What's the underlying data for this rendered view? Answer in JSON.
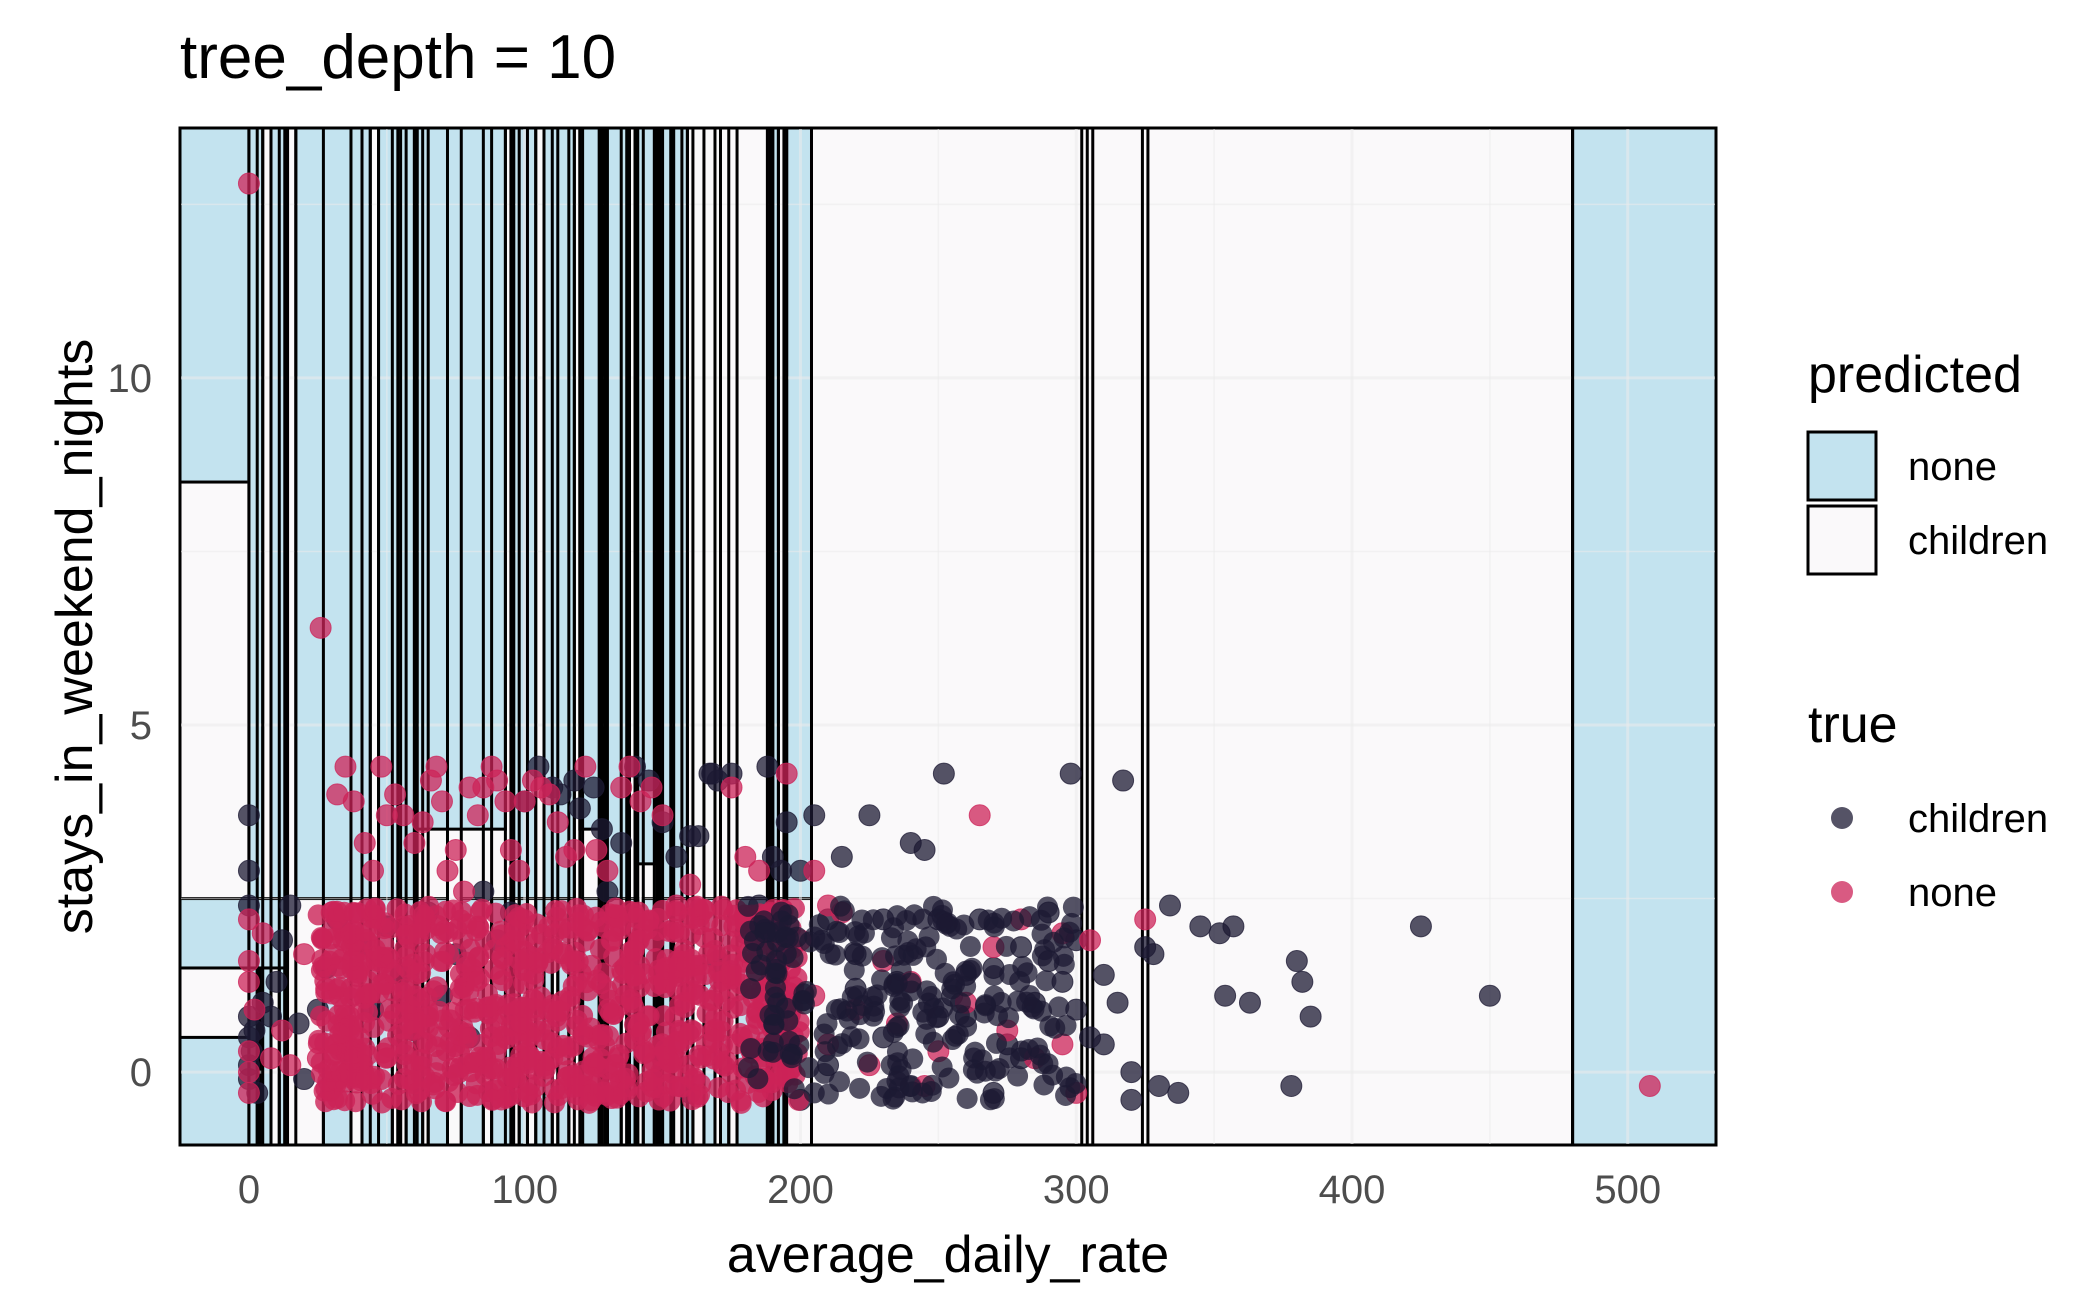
{
  "chart_data": {
    "type": "scatter",
    "title": "tree_depth = 10",
    "xlabel": "average_daily_rate",
    "ylabel": "stays_in_weekend_nights",
    "xlim": [
      -25,
      532
    ],
    "ylim": [
      -1.05,
      13.6
    ],
    "x_ticks": [
      0,
      100,
      200,
      300,
      400,
      500
    ],
    "y_ticks": [
      0,
      5,
      10
    ],
    "grid": true,
    "legends": [
      {
        "title": "predicted",
        "entries": [
          {
            "label": "none",
            "fill": "#c3e3ef"
          },
          {
            "label": "children",
            "fill": "#faf9fa"
          }
        ]
      },
      {
        "title": "true",
        "entries": [
          {
            "label": "children",
            "color": "#1c1a33"
          },
          {
            "label": "none",
            "color": "#cc2358"
          }
        ]
      }
    ],
    "legend_position": "right",
    "colors": {
      "region_none": "#c3e3ef",
      "region_children": "#faf9fa",
      "point_children": "#1c1a33",
      "point_none": "#cc2358"
    },
    "regions": [
      {
        "x0": -25,
        "x1": 480,
        "y0": -1.05,
        "y1": 13.6,
        "predicted": "children"
      },
      {
        "x0": 480,
        "x1": 532,
        "y0": -1.05,
        "y1": 13.6,
        "predicted": "none"
      },
      {
        "x0": -25,
        "x1": 0,
        "y0": 8.5,
        "y1": 13.6,
        "predicted": "none"
      },
      {
        "x0": -25,
        "x1": 0,
        "y0": -1.05,
        "y1": 0.5,
        "predicted": "none"
      },
      {
        "x0": -25,
        "x1": 0,
        "y0": 1.5,
        "y1": 2.5,
        "predicted": "none"
      },
      {
        "x0": 0,
        "x1": 5,
        "y0": 2.5,
        "y1": 13.6,
        "predicted": "none"
      },
      {
        "x0": 8,
        "x1": 14,
        "y0": 2.5,
        "y1": 13.6,
        "predicted": "none"
      },
      {
        "x0": 17,
        "x1": 44,
        "y0": 2.5,
        "y1": 13.6,
        "predicted": "none"
      },
      {
        "x0": 47,
        "x1": 60,
        "y0": 2.5,
        "y1": 13.6,
        "predicted": "none"
      },
      {
        "x0": 61,
        "x1": 93,
        "y0": 3.5,
        "y1": 13.6,
        "predicted": "none"
      },
      {
        "x0": 96,
        "x1": 104,
        "y0": 2.5,
        "y1": 13.6,
        "predicted": "none"
      },
      {
        "x0": 107,
        "x1": 118,
        "y0": 2.5,
        "y1": 13.6,
        "predicted": "none"
      },
      {
        "x0": 120,
        "x1": 128,
        "y0": 3.5,
        "y1": 13.6,
        "predicted": "none"
      },
      {
        "x0": 129,
        "x1": 138,
        "y0": 2.5,
        "y1": 13.6,
        "predicted": "none"
      },
      {
        "x0": 140,
        "x1": 148,
        "y0": 3.0,
        "y1": 13.6,
        "predicted": "none"
      },
      {
        "x0": 149,
        "x1": 153,
        "y0": 2.5,
        "y1": 13.6,
        "predicted": "none"
      },
      {
        "x0": 154,
        "x1": 159,
        "y0": 2.5,
        "y1": 13.6,
        "predicted": "none"
      },
      {
        "x0": 189,
        "x1": 192,
        "y0": 2.5,
        "y1": 13.6,
        "predicted": "none"
      },
      {
        "x0": 195,
        "x1": 204,
        "y0": 2.5,
        "y1": 13.6,
        "predicted": "none"
      },
      {
        "x0": 0,
        "x1": 480,
        "y0": 2.5,
        "y1": 2.5,
        "predicted": "children"
      },
      {
        "x0": 0,
        "x1": 14,
        "y0": 1.5,
        "y1": 2.5,
        "predicted": "none"
      },
      {
        "x0": 0,
        "x1": 3,
        "y0": -1.05,
        "y1": 1.5,
        "predicted": "none"
      },
      {
        "x0": 4,
        "x1": 8,
        "y0": -1.05,
        "y1": 1.5,
        "predicted": "none"
      },
      {
        "x0": 11,
        "x1": 13,
        "y0": -1.05,
        "y1": 1.5,
        "predicted": "none"
      },
      {
        "x0": 27,
        "x1": 37,
        "y0": -1.05,
        "y1": 2.5,
        "predicted": "none"
      },
      {
        "x0": 41,
        "x1": 52,
        "y0": -1.05,
        "y1": 2.5,
        "predicted": "none"
      },
      {
        "x0": 54,
        "x1": 55,
        "y0": -1.05,
        "y1": 2.5,
        "predicted": "none"
      },
      {
        "x0": 57,
        "x1": 63,
        "y0": -1.05,
        "y1": 2.5,
        "predicted": "none"
      },
      {
        "x0": 65,
        "x1": 72,
        "y0": -1.05,
        "y1": 2.5,
        "predicted": "none"
      },
      {
        "x0": 77,
        "x1": 85,
        "y0": -1.05,
        "y1": 2.5,
        "predicted": "none"
      },
      {
        "x0": 88,
        "x1": 95,
        "y0": -1.05,
        "y1": 2.5,
        "predicted": "none"
      },
      {
        "x0": 98,
        "x1": 101,
        "y0": -1.05,
        "y1": 2.5,
        "predicted": "none"
      },
      {
        "x0": 104,
        "x1": 110,
        "y0": -1.05,
        "y1": 2.5,
        "predicted": "none"
      },
      {
        "x0": 112,
        "x1": 116,
        "y0": -1.05,
        "y1": 2.5,
        "predicted": "none"
      },
      {
        "x0": 121,
        "x1": 127,
        "y0": -1.05,
        "y1": 2.5,
        "predicted": "none"
      },
      {
        "x0": 130,
        "x1": 135,
        "y0": -1.05,
        "y1": 2.5,
        "predicted": "none"
      },
      {
        "x0": 137,
        "x1": 141,
        "y0": -1.05,
        "y1": 2.5,
        "predicted": "none"
      },
      {
        "x0": 143,
        "x1": 147,
        "y0": -1.05,
        "y1": 2.5,
        "predicted": "none"
      },
      {
        "x0": 150,
        "x1": 154,
        "y0": -1.05,
        "y1": 2.5,
        "predicted": "none"
      },
      {
        "x0": 157,
        "x1": 161,
        "y0": -1.05,
        "y1": 2.5,
        "predicted": "none"
      },
      {
        "x0": 165,
        "x1": 169,
        "y0": -1.05,
        "y1": 2.5,
        "predicted": "none"
      },
      {
        "x0": 171,
        "x1": 174,
        "y0": -1.05,
        "y1": 2.5,
        "predicted": "none"
      },
      {
        "x0": 177,
        "x1": 188,
        "y0": -1.05,
        "y1": 2.5,
        "predicted": "none"
      },
      {
        "x0": 190,
        "x1": 194,
        "y0": -1.05,
        "y1": 2.5,
        "predicted": "none"
      }
    ],
    "split_lines_x": [
      0,
      3,
      5,
      8,
      11,
      13,
      14,
      17,
      27,
      37,
      41,
      44,
      47,
      52,
      54,
      55,
      57,
      60,
      61,
      63,
      65,
      72,
      77,
      85,
      88,
      93,
      95,
      96,
      98,
      101,
      104,
      107,
      110,
      112,
      116,
      118,
      120,
      121,
      127,
      128,
      129,
      130,
      135,
      137,
      138,
      140,
      141,
      143,
      147,
      148,
      149,
      150,
      153,
      154,
      157,
      159,
      161,
      165,
      169,
      171,
      174,
      177,
      188,
      189,
      190,
      192,
      194,
      195,
      204,
      302,
      304,
      306,
      324,
      326,
      480
    ],
    "series": [
      {
        "name": "children",
        "points": [
          [
            0,
            3.7
          ],
          [
            0,
            2.9
          ],
          [
            0,
            2.4
          ],
          [
            0,
            0.8
          ],
          [
            0,
            0.5
          ],
          [
            0,
            0.1
          ],
          [
            0,
            -0.1
          ],
          [
            1,
            0.3
          ],
          [
            2,
            0.6
          ],
          [
            3,
            -0.3
          ],
          [
            5,
            1.0
          ],
          [
            8,
            0.8
          ],
          [
            10,
            1.3
          ],
          [
            12,
            1.9
          ],
          [
            15,
            2.4
          ],
          [
            18,
            0.7
          ],
          [
            20,
            -0.1
          ],
          [
            25,
            0.9
          ],
          [
            28,
            1.5
          ],
          [
            32,
            2.2
          ],
          [
            35,
            0.3
          ],
          [
            40,
            1.8
          ],
          [
            45,
            0.9
          ],
          [
            50,
            2.1
          ],
          [
            55,
            1.4
          ],
          [
            60,
            0.6
          ],
          [
            65,
            2.3
          ],
          [
            70,
            1.1
          ],
          [
            75,
            1.7
          ],
          [
            80,
            0.5
          ],
          [
            85,
            2.6
          ],
          [
            90,
            1.9
          ],
          [
            95,
            2.3
          ],
          [
            100,
            3.9
          ],
          [
            105,
            4.4
          ],
          [
            110,
            4.1
          ],
          [
            113,
            4.0
          ],
          [
            118,
            4.2
          ],
          [
            120,
            3.8
          ],
          [
            125,
            4.1
          ],
          [
            128,
            3.5
          ],
          [
            130,
            2.6
          ],
          [
            135,
            3.3
          ],
          [
            140,
            4.4
          ],
          [
            145,
            4.2
          ],
          [
            150,
            3.6
          ],
          [
            155,
            3.1
          ],
          [
            160,
            3.4
          ],
          [
            163,
            3.4
          ],
          [
            167,
            4.3
          ],
          [
            168,
            4.3
          ],
          [
            170,
            4.2
          ],
          [
            175,
            4.3
          ],
          [
            180,
            2.0
          ],
          [
            185,
            2.4
          ],
          [
            188,
            4.4
          ],
          [
            190,
            3.1
          ],
          [
            193,
            2.9
          ],
          [
            195,
            3.6
          ],
          [
            200,
            2.9
          ],
          [
            205,
            3.7
          ],
          [
            210,
            2.2
          ],
          [
            215,
            3.1
          ],
          [
            220,
            1.7
          ],
          [
            225,
            3.7
          ],
          [
            230,
            2.2
          ],
          [
            235,
            1.3
          ],
          [
            240,
            3.3
          ],
          [
            245,
            3.2
          ],
          [
            250,
            2.2
          ],
          [
            252,
            4.3
          ],
          [
            255,
            1.1
          ],
          [
            260,
            0.8
          ],
          [
            265,
            2.2
          ],
          [
            270,
            1.5
          ],
          [
            275,
            0.4
          ],
          [
            280,
            1.8
          ],
          [
            285,
            1.0
          ],
          [
            290,
            2.3
          ],
          [
            295,
            1.3
          ],
          [
            298,
            4.3
          ],
          [
            300,
            1.9
          ],
          [
            305,
            0.5
          ],
          [
            310,
            1.4
          ],
          [
            315,
            1.0
          ],
          [
            317,
            4.2
          ],
          [
            320,
            0.0
          ],
          [
            325,
            1.8
          ],
          [
            328,
            1.7
          ],
          [
            330,
            -0.2
          ],
          [
            334,
            2.4
          ],
          [
            337,
            -0.3
          ],
          [
            345,
            2.1
          ],
          [
            352,
            2.0
          ],
          [
            354,
            1.1
          ],
          [
            357,
            2.1
          ],
          [
            363,
            1.0
          ],
          [
            378,
            -0.2
          ],
          [
            380,
            1.6
          ],
          [
            382,
            1.3
          ],
          [
            385,
            0.8
          ],
          [
            425,
            2.1
          ],
          [
            450,
            1.1
          ],
          [
            150,
            0.2
          ],
          [
            160,
            -0.3
          ],
          [
            170,
            1.6
          ],
          [
            200,
            -0.4
          ],
          [
            210,
            0.1
          ],
          [
            220,
            1.2
          ],
          [
            230,
            0.5
          ],
          [
            240,
            -0.2
          ],
          [
            250,
            0.8
          ],
          [
            260,
            1.4
          ],
          [
            270,
            -0.3
          ],
          [
            280,
            0.2
          ],
          [
            290,
            1.6
          ],
          [
            300,
            0.9
          ],
          [
            310,
            0.4
          ],
          [
            320,
            -0.4
          ]
        ]
      },
      {
        "name": "none",
        "points": [
          [
            0,
            12.8
          ],
          [
            26,
            6.4
          ],
          [
            0,
            2.2
          ],
          [
            0,
            1.6
          ],
          [
            0,
            1.3
          ],
          [
            0,
            0.3
          ],
          [
            0,
            0.0
          ],
          [
            0,
            -0.3
          ],
          [
            2,
            0.9
          ],
          [
            5,
            2.0
          ],
          [
            8,
            0.2
          ],
          [
            12,
            0.6
          ],
          [
            15,
            0.1
          ],
          [
            20,
            1.7
          ],
          [
            25,
            0.2
          ],
          [
            28,
            1.2
          ],
          [
            30,
            2.3
          ],
          [
            32,
            4.0
          ],
          [
            35,
            4.4
          ],
          [
            38,
            3.9
          ],
          [
            42,
            3.3
          ],
          [
            45,
            2.9
          ],
          [
            48,
            4.4
          ],
          [
            50,
            3.7
          ],
          [
            53,
            4.0
          ],
          [
            56,
            3.7
          ],
          [
            60,
            3.3
          ],
          [
            63,
            3.6
          ],
          [
            66,
            4.2
          ],
          [
            68,
            4.4
          ],
          [
            70,
            3.9
          ],
          [
            72,
            2.9
          ],
          [
            75,
            3.2
          ],
          [
            78,
            2.6
          ],
          [
            80,
            4.1
          ],
          [
            83,
            3.7
          ],
          [
            85,
            4.1
          ],
          [
            88,
            4.4
          ],
          [
            90,
            4.2
          ],
          [
            93,
            3.9
          ],
          [
            95,
            3.2
          ],
          [
            98,
            2.9
          ],
          [
            100,
            3.9
          ],
          [
            103,
            4.2
          ],
          [
            106,
            4.1
          ],
          [
            109,
            4.0
          ],
          [
            112,
            3.6
          ],
          [
            115,
            3.1
          ],
          [
            118,
            3.2
          ],
          [
            122,
            4.4
          ],
          [
            126,
            3.2
          ],
          [
            130,
            2.9
          ],
          [
            135,
            4.1
          ],
          [
            138,
            4.4
          ],
          [
            142,
            3.9
          ],
          [
            146,
            4.1
          ],
          [
            150,
            3.7
          ],
          [
            155,
            2.4
          ],
          [
            160,
            2.7
          ],
          [
            175,
            4.1
          ],
          [
            180,
            3.1
          ],
          [
            185,
            2.9
          ],
          [
            195,
            4.3
          ],
          [
            205,
            2.9
          ],
          [
            210,
            2.4
          ],
          [
            265,
            3.7
          ],
          [
            280,
            2.2
          ],
          [
            295,
            2.0
          ],
          [
            305,
            1.9
          ],
          [
            325,
            2.2
          ],
          [
            295,
            0.4
          ],
          [
            300,
            -0.3
          ],
          [
            508,
            -0.2
          ],
          [
            200,
            1.9
          ],
          [
            205,
            1.1
          ],
          [
            210,
            0.4
          ],
          [
            215,
            2.3
          ],
          [
            220,
            0.9
          ],
          [
            225,
            0.1
          ],
          [
            230,
            1.6
          ],
          [
            235,
            0.7
          ],
          [
            240,
            1.3
          ],
          [
            245,
            -0.2
          ],
          [
            250,
            0.3
          ],
          [
            260,
            1.0
          ],
          [
            270,
            1.8
          ],
          [
            275,
            0.6
          ],
          [
            285,
            0.2
          ]
        ]
      }
    ]
  }
}
